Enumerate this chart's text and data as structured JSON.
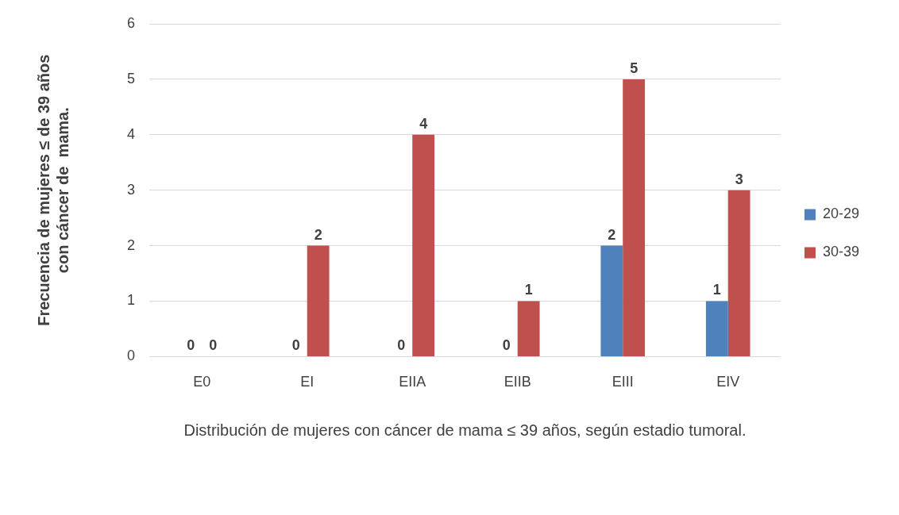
{
  "chart_data": {
    "type": "bar",
    "xlabel": "Distribución de mujeres con cáncer de mama ≤ 39 años, según estadio tumoral.",
    "ylabel": "Frecuencia de mujeres ≤ de 39 años\ncon cáncer de  mama.",
    "categories": [
      "E0",
      "EI",
      "EIIA",
      "EIIB",
      "EIII",
      "EIV"
    ],
    "series": [
      {
        "name": "20-29",
        "color": "#4f81bd",
        "values": [
          0,
          0,
          0,
          0,
          2,
          1
        ]
      },
      {
        "name": "30-39",
        "color": "#c0504d",
        "values": [
          0,
          2,
          4,
          1,
          5,
          3
        ]
      }
    ],
    "ylim": [
      0,
      6
    ],
    "yticks": [
      0,
      1,
      2,
      3,
      4,
      5,
      6
    ],
    "grid": "y",
    "legend": "right",
    "data_labels": true
  }
}
